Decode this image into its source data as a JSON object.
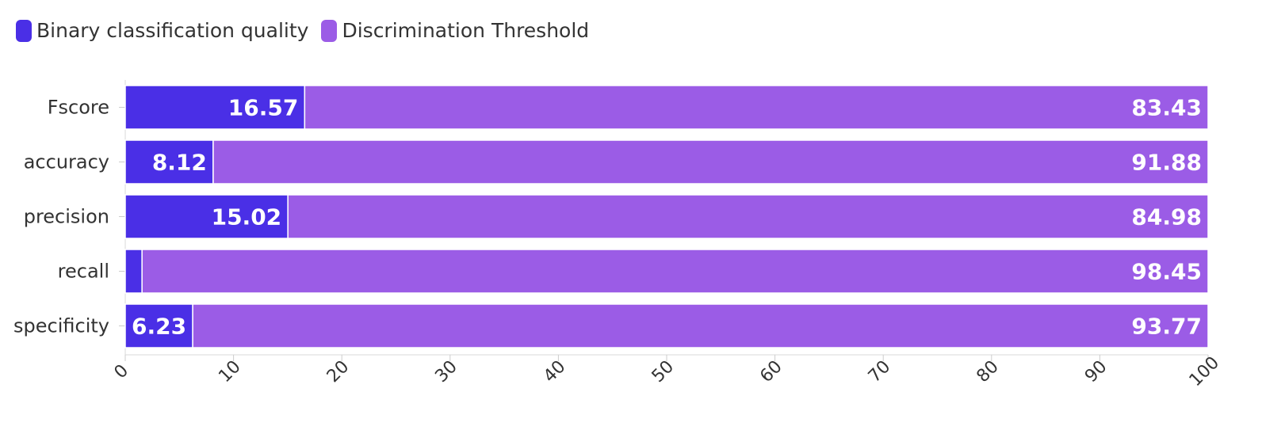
{
  "chart_data": {
    "type": "bar",
    "orientation": "horizontal",
    "stacked": true,
    "categories": [
      "Fscore",
      "accuracy",
      "precision",
      "recall",
      "specificity"
    ],
    "series": [
      {
        "name": "Binary classification quality",
        "color": "#4A2FE6",
        "values": [
          16.57,
          8.12,
          15.02,
          1.55,
          6.23
        ]
      },
      {
        "name": "Discrimination Threshold",
        "color": "#9B5CE6",
        "values": [
          83.43,
          91.88,
          84.98,
          98.45,
          93.77
        ]
      }
    ],
    "hidden_labels": {
      "series": 0,
      "categories": [
        "recall"
      ]
    },
    "xlim": [
      0,
      100
    ],
    "xticks": [
      0,
      10,
      20,
      30,
      40,
      50,
      60,
      70,
      80,
      90,
      100
    ],
    "legend_position": "top-left",
    "grid": false
  }
}
